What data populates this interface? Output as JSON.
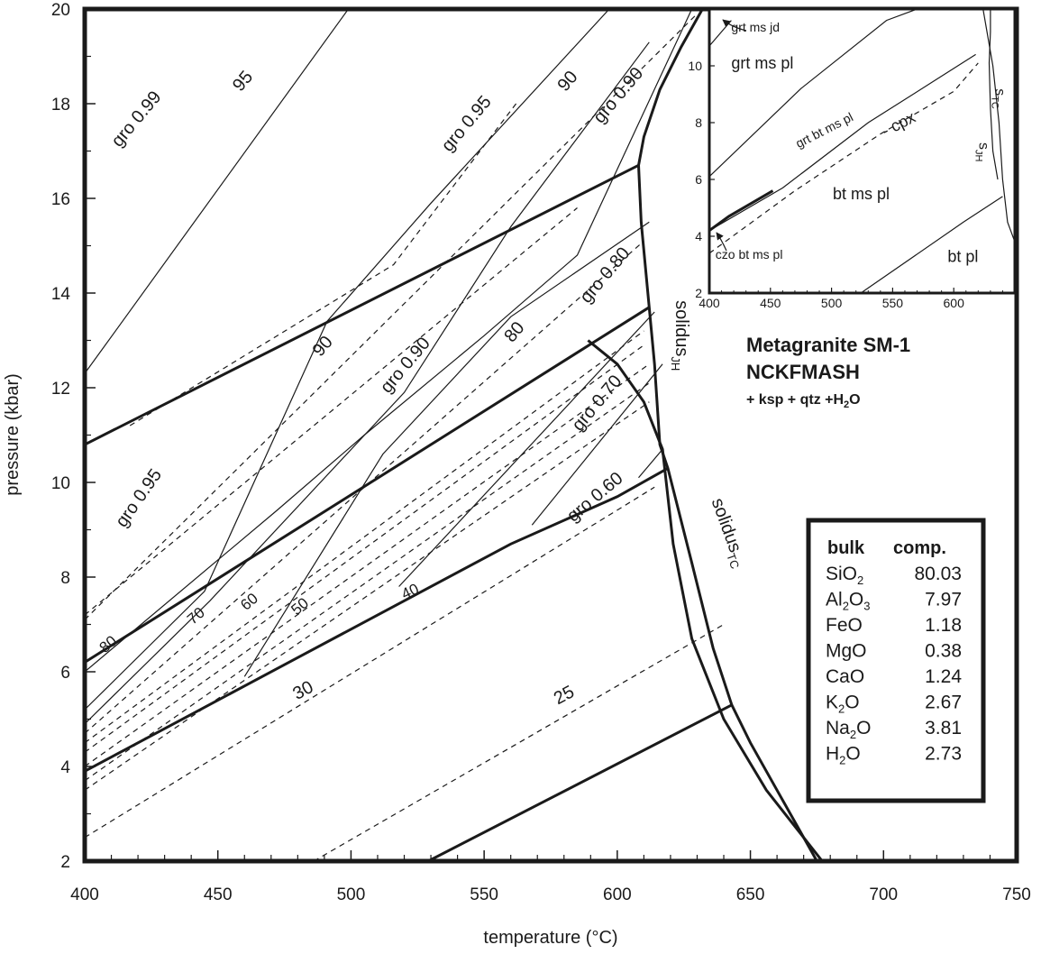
{
  "chart_data": {
    "type": "line",
    "title": "Metagranite SM-1",
    "subtitle": "NCKFMASH",
    "assemblage": {
      "prefix": "+ ksp + qtz +H",
      "sub": "2",
      "suffix": "O"
    },
    "xlabel": "temperature (°C)",
    "ylabel": "pressure (kbar)",
    "xlim": [
      400,
      750
    ],
    "ylim": [
      2,
      20
    ],
    "x_ticks": [
      "400",
      "450",
      "500",
      "550",
      "600",
      "650",
      "700",
      "750"
    ],
    "y_ticks": [
      "2",
      "4",
      "6",
      "8",
      "10",
      "12",
      "14",
      "16",
      "18",
      "20"
    ],
    "series": [
      {
        "id": "l1",
        "style": "thick",
        "points": [
          [
            400,
            10.8
          ],
          [
            608,
            16.7
          ]
        ]
      },
      {
        "id": "l2",
        "style": "thick",
        "points": [
          [
            400,
            6.2
          ],
          [
            612,
            13.7
          ]
        ]
      },
      {
        "id": "l3",
        "style": "thick",
        "points": [
          [
            400,
            3.9
          ],
          [
            440,
            5.1
          ],
          [
            480,
            6.3
          ],
          [
            520,
            7.5
          ],
          [
            560,
            8.7
          ],
          [
            600,
            9.7
          ],
          [
            619,
            10.3
          ]
        ]
      },
      {
        "id": "l4",
        "style": "thick",
        "points": [
          [
            529,
            2
          ],
          [
            643,
            5.3
          ]
        ]
      },
      {
        "id": "solJH",
        "style": "thick",
        "points": [
          [
            675,
            2
          ],
          [
            660,
            3.5
          ],
          [
            650,
            4.5
          ],
          [
            643,
            5.3
          ],
          [
            636,
            6.5
          ],
          [
            628,
            8.3
          ],
          [
            619,
            10.3
          ],
          [
            616,
            10.8
          ],
          [
            614,
            12.5
          ],
          [
            612,
            13.7
          ],
          [
            609,
            15.5
          ],
          [
            608,
            16.7
          ],
          [
            610,
            17.3
          ],
          [
            616,
            18.3
          ],
          [
            624,
            19.2
          ],
          [
            632,
            20
          ]
        ]
      },
      {
        "id": "solTC",
        "style": "thick",
        "points": [
          [
            677,
            2
          ],
          [
            656,
            3.5
          ],
          [
            640,
            5
          ],
          [
            628,
            6.7
          ],
          [
            621,
            8.7
          ],
          [
            617,
            10.7
          ],
          [
            610,
            11.7
          ],
          [
            600,
            12.5
          ],
          [
            589,
            13
          ]
        ]
      },
      {
        "id": "g99",
        "style": "thin",
        "points": [
          [
            400,
            12.3
          ],
          [
            499,
            20
          ]
        ]
      },
      {
        "id": "g95a",
        "style": "thin",
        "points": [
          [
            400,
            6
          ],
          [
            472,
            9.4
          ],
          [
            505,
            11
          ],
          [
            550,
            13.1
          ],
          [
            585,
            14.8
          ],
          [
            628,
            20
          ]
        ]
      },
      {
        "id": "g95b",
        "style": "thin",
        "points": [
          [
            400,
            5.2
          ],
          [
            445,
            7.7
          ],
          [
            491,
            13.4
          ],
          [
            530,
            15.9
          ],
          [
            597,
            20
          ]
        ]
      },
      {
        "id": "g90a",
        "style": "thin",
        "points": [
          [
            400,
            4.9
          ],
          [
            447,
            7.5
          ],
          [
            520,
            11.9
          ],
          [
            560,
            15.4
          ],
          [
            612,
            19.3
          ]
        ]
      },
      {
        "id": "g90b",
        "style": "thin",
        "points": [
          [
            460,
            5.9
          ],
          [
            512,
            10.6
          ],
          [
            560,
            13.5
          ],
          [
            612,
            15.5
          ]
        ]
      },
      {
        "id": "g80",
        "style": "thin",
        "points": [
          [
            518,
            7.8
          ],
          [
            614,
            13.6
          ]
        ]
      },
      {
        "id": "g70",
        "style": "thin",
        "points": [
          [
            568,
            9.1
          ],
          [
            617,
            12.5
          ]
        ]
      },
      {
        "id": "g60",
        "style": "thin",
        "points": [
          [
            608,
            10.1
          ],
          [
            617,
            10.7
          ]
        ]
      },
      {
        "id": "d99",
        "style": "dash",
        "points": [
          [
            400,
            7.1
          ],
          [
            630,
            19.9
          ]
        ]
      },
      {
        "id": "d95",
        "style": "dash",
        "points": [
          [
            417,
            11.2
          ],
          [
            516,
            14.6
          ],
          [
            562,
            18
          ]
        ]
      },
      {
        "id": "d90a",
        "style": "dash",
        "points": [
          [
            400,
            7.2
          ],
          [
            585,
            15.8
          ]
        ]
      },
      {
        "id": "d90b",
        "style": "dash",
        "points": [
          [
            400,
            4.7
          ],
          [
            610,
            15.1
          ]
        ]
      },
      {
        "id": "d80",
        "style": "dash",
        "points": [
          [
            400,
            4.5
          ],
          [
            610,
            13.2
          ]
        ]
      },
      {
        "id": "d70",
        "style": "dash",
        "points": [
          [
            400,
            4.3
          ],
          [
            610,
            12.9
          ]
        ]
      },
      {
        "id": "d60",
        "style": "dash",
        "points": [
          [
            400,
            4
          ],
          [
            612,
            12.5
          ]
        ]
      },
      {
        "id": "d50",
        "style": "dash",
        "points": [
          [
            400,
            3.7
          ],
          [
            612,
            12.1
          ]
        ]
      },
      {
        "id": "d40",
        "style": "dash",
        "points": [
          [
            400,
            3.5
          ],
          [
            612,
            11.7
          ]
        ]
      },
      {
        "id": "d30",
        "style": "dash",
        "points": [
          [
            400,
            2.5
          ],
          [
            614,
            9.9
          ]
        ]
      },
      {
        "id": "d25",
        "style": "dash",
        "points": [
          [
            486,
            2
          ],
          [
            640,
            7
          ]
        ]
      }
    ],
    "labels": [
      {
        "text": "gro 0.99",
        "x": 421,
        "y": 17.6,
        "rot": -50
      },
      {
        "text": "95",
        "x": 461,
        "y": 18.4,
        "rot": -50
      },
      {
        "text": "gro 0.95",
        "x": 545,
        "y": 17.5,
        "rot": -50
      },
      {
        "text": "90",
        "x": 583,
        "y": 18.4,
        "rot": -50
      },
      {
        "text": "gro 0.90",
        "x": 602,
        "y": 18.1,
        "rot": -50
      },
      {
        "text": "80",
        "x": 563,
        "y": 13.1,
        "rot": -50
      },
      {
        "text": "gro 0.80",
        "x": 597,
        "y": 14.3,
        "rot": -50
      },
      {
        "text": "90",
        "x": 491,
        "y": 12.8,
        "rot": -50
      },
      {
        "text": "gro 0.90",
        "x": 522,
        "y": 12.4,
        "rot": -50
      },
      {
        "text": "gro 0.70",
        "x": 594,
        "y": 11.6,
        "rot": -50
      },
      {
        "text": "gro 0.60",
        "x": 593,
        "y": 9.6,
        "rot": -40
      },
      {
        "text": "gro 0.95",
        "x": 422,
        "y": 9.6,
        "rot": -55
      },
      {
        "text": "80",
        "x": 410,
        "y": 6.5,
        "rot": -40,
        "small": true
      },
      {
        "text": "70",
        "x": 443,
        "y": 7.1,
        "rot": -40,
        "small": true
      },
      {
        "text": "60",
        "x": 463,
        "y": 7.4,
        "rot": -40,
        "small": true
      },
      {
        "text": "50",
        "x": 482,
        "y": 7.3,
        "rot": -40,
        "small": true
      },
      {
        "text": "40",
        "x": 523,
        "y": 7.6,
        "rot": -25,
        "small": true
      },
      {
        "text": "30",
        "x": 483,
        "y": 5.5,
        "rot": -28
      },
      {
        "text": "25",
        "x": 581,
        "y": 5.4,
        "rot": -28
      }
    ],
    "curve_labels": [
      {
        "text": "solidus",
        "sub": "JH",
        "x": 622,
        "y": 13.1,
        "rot": 90
      },
      {
        "text": "solidus",
        "sub": "TC",
        "x": 640,
        "y": 8.9,
        "rot": 70
      }
    ],
    "inset": {
      "xlim": [
        400,
        650
      ],
      "ylim": [
        2,
        12
      ],
      "x_ticks": [
        "400",
        "450",
        "500",
        "550",
        "600"
      ],
      "y_ticks": [
        "2",
        "4",
        "6",
        "8",
        "10"
      ],
      "fields": [
        {
          "text": "grt ms jd",
          "x": 418,
          "y": 11.2
        },
        {
          "text": "grt ms pl",
          "x": 418,
          "y": 9.9
        },
        {
          "text": "grt bt ms pl",
          "x": 473,
          "y": 7.1,
          "rot": -27
        },
        {
          "text": "- cpx",
          "x": 544,
          "y": 7.5,
          "rot": -27
        },
        {
          "text": "bt ms pl",
          "x": 501,
          "y": 5.3
        },
        {
          "text": "bt pl",
          "x": 595,
          "y": 3.1
        },
        {
          "text": "czo bt ms pl",
          "x": 405,
          "y": 3.2
        }
      ],
      "curve_labels": [
        {
          "text": "s",
          "sub": "TC",
          "x": 634,
          "y": 9.2,
          "rot": 90
        },
        {
          "text": "s",
          "sub": "JH",
          "x": 621,
          "y": 7.3,
          "rot": 90
        }
      ],
      "lines": [
        {
          "style": "thin",
          "points": [
            [
              400,
              10.7
            ],
            [
              418,
              11.6
            ]
          ]
        },
        {
          "style": "thin",
          "points": [
            [
              400,
              6.1
            ],
            [
              475,
              9.2
            ],
            [
              545,
              11.6
            ],
            [
              570,
              12
            ]
          ]
        },
        {
          "style": "thin",
          "points": [
            [
              400,
              4.2
            ],
            [
              460,
              5.7
            ],
            [
              530,
              8
            ],
            [
              585,
              9.5
            ],
            [
              618,
              10.4
            ]
          ]
        },
        {
          "style": "dash",
          "points": [
            [
              400,
              3.4
            ],
            [
              470,
              5.6
            ],
            [
              540,
              7.6
            ],
            [
              600,
              9.1
            ],
            [
              620,
              10.1
            ]
          ]
        },
        {
          "style": "thick",
          "points": [
            [
              400,
              4.2
            ],
            [
              416,
              4.7
            ],
            [
              436,
              5.2
            ],
            [
              452,
              5.6
            ]
          ]
        },
        {
          "style": "thin",
          "points": [
            [
              524,
              2
            ],
            [
              608,
              4.5
            ],
            [
              640,
              5.4
            ]
          ]
        },
        {
          "style": "thin",
          "points": [
            [
              624,
              12
            ],
            [
              632,
              10
            ],
            [
              637,
              8
            ],
            [
              640,
              6
            ],
            [
              644,
              4.5
            ],
            [
              650,
              3.8
            ]
          ]
        },
        {
          "style": "thin",
          "points": [
            [
              630,
              12
            ],
            [
              630,
              11.2
            ],
            [
              629,
              10.1
            ],
            [
              630,
              8.5
            ],
            [
              632,
              7
            ],
            [
              636,
              6
            ]
          ]
        }
      ]
    },
    "bulk_composition": {
      "header": [
        "bulk",
        "comp."
      ],
      "rows": [
        {
          "base": "SiO",
          "sub": "2",
          "after": "",
          "value": "80.03"
        },
        {
          "base": "Al",
          "sub": "2",
          "after": "O",
          "sub2": "3",
          "value": "7.97"
        },
        {
          "base": "FeO",
          "sub": "",
          "after": "",
          "value": "1.18"
        },
        {
          "base": "MgO",
          "sub": "",
          "after": "",
          "value": "0.38"
        },
        {
          "base": "CaO",
          "sub": "",
          "after": "",
          "value": "1.24"
        },
        {
          "base": "K",
          "sub": "2",
          "after": "O",
          "value": "2.67"
        },
        {
          "base": "Na",
          "sub": "2",
          "after": "O",
          "value": "3.81"
        },
        {
          "base": "H",
          "sub": "2",
          "after": "O",
          "value": "2.73"
        }
      ]
    }
  }
}
